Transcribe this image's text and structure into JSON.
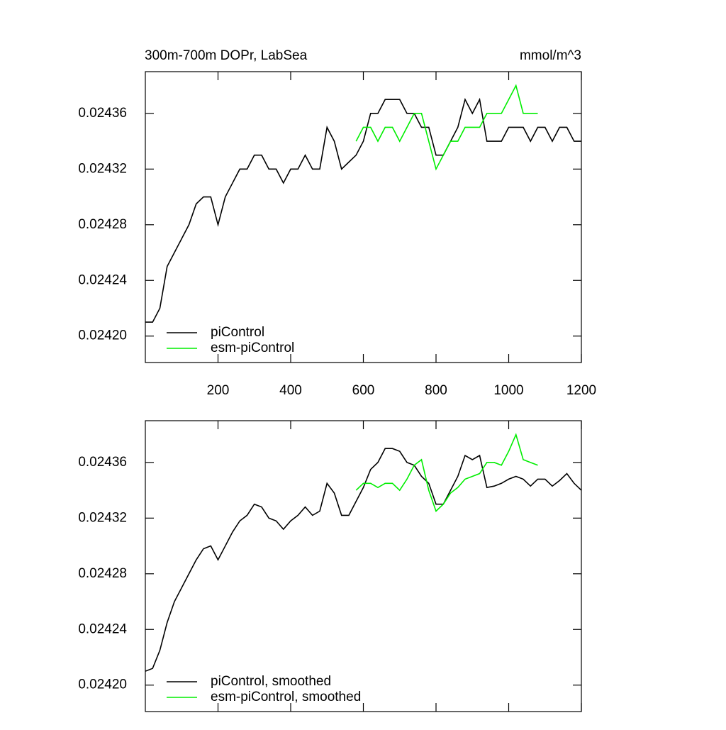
{
  "chart_data": [
    {
      "type": "line",
      "title": "300m-700m DOPr, LabSea",
      "unit_label": "mmol/m^3",
      "xlim": [
        0,
        1200
      ],
      "xticks": [
        200,
        400,
        600,
        800,
        1000,
        1200
      ],
      "show_xtick_labels": true,
      "ylim": [
        0.024181,
        0.02439
      ],
      "yticks": [
        {
          "value": 0.0242,
          "label": "0.02420"
        },
        0.02424,
        0.02428,
        0.02432,
        0.02436
      ],
      "legend": "bottom-left",
      "series": [
        {
          "name": "piControl",
          "color": "#000000",
          "x": [
            0,
            20,
            40,
            60,
            80,
            100,
            120,
            140,
            160,
            180,
            200,
            220,
            240,
            260,
            280,
            300,
            320,
            340,
            360,
            380,
            400,
            420,
            440,
            460,
            480,
            500,
            520,
            540,
            560,
            580,
            600,
            620,
            640,
            660,
            680,
            700,
            720,
            740,
            760,
            780,
            800,
            820,
            840,
            860,
            880,
            900,
            920,
            940,
            960,
            980,
            1000,
            1020,
            1040,
            1060,
            1080,
            1100,
            1120,
            1140,
            1160,
            1180,
            1200
          ],
          "values": [
            0.02421,
            0.02421,
            0.02422,
            0.02425,
            0.02426,
            0.02427,
            0.02428,
            0.024295,
            0.0243,
            0.0243,
            0.02428,
            0.0243,
            0.02431,
            0.02432,
            0.02432,
            0.02433,
            0.02433,
            0.02432,
            0.02432,
            0.02431,
            0.02432,
            0.02432,
            0.02433,
            0.02432,
            0.02432,
            0.02435,
            0.02434,
            0.02432,
            0.024325,
            0.02433,
            0.02434,
            0.02436,
            0.02436,
            0.02437,
            0.02437,
            0.02437,
            0.02436,
            0.02436,
            0.02435,
            0.02435,
            0.02433,
            0.02433,
            0.02434,
            0.02435,
            0.02437,
            0.02436,
            0.02437,
            0.02434,
            0.02434,
            0.02434,
            0.02435,
            0.02435,
            0.02435,
            0.02434,
            0.02435,
            0.02435,
            0.02434,
            0.02435,
            0.02435,
            0.02434,
            0.02434
          ]
        },
        {
          "name": "esm-piControl",
          "color": "#00ee00",
          "x": [
            580,
            600,
            620,
            640,
            660,
            680,
            700,
            720,
            740,
            760,
            780,
            800,
            820,
            840,
            860,
            880,
            900,
            920,
            940,
            960,
            980,
            1000,
            1020,
            1040,
            1060,
            1080
          ],
          "values": [
            0.02434,
            0.02435,
            0.02435,
            0.02434,
            0.02435,
            0.02435,
            0.02434,
            0.02435,
            0.02436,
            0.02436,
            0.02434,
            0.02432,
            0.02433,
            0.02434,
            0.02434,
            0.02435,
            0.02435,
            0.02435,
            0.02436,
            0.02436,
            0.02436,
            0.02437,
            0.02438,
            0.02436,
            0.02436,
            0.02436
          ]
        }
      ]
    },
    {
      "type": "line",
      "xlim": [
        0,
        1200
      ],
      "xticks": [
        200,
        400,
        600,
        800,
        1000,
        1200
      ],
      "show_xtick_labels": false,
      "ylim": [
        0.024181,
        0.02439
      ],
      "yticks": [
        {
          "value": 0.0242,
          "label": "0.02420"
        },
        0.02424,
        0.02428,
        0.02432,
        0.02436
      ],
      "legend": "bottom-left",
      "series": [
        {
          "name": "piControl, smoothed",
          "color": "#000000",
          "x": [
            0,
            20,
            40,
            60,
            80,
            100,
            120,
            140,
            160,
            180,
            200,
            220,
            240,
            260,
            280,
            300,
            320,
            340,
            360,
            380,
            400,
            420,
            440,
            460,
            480,
            500,
            520,
            540,
            560,
            580,
            600,
            620,
            640,
            660,
            680,
            700,
            720,
            740,
            760,
            780,
            800,
            820,
            840,
            860,
            880,
            900,
            920,
            940,
            960,
            980,
            1000,
            1020,
            1040,
            1060,
            1080,
            1100,
            1120,
            1140,
            1160,
            1180,
            1200
          ],
          "values": [
            0.02421,
            0.024212,
            0.024225,
            0.024245,
            0.02426,
            0.02427,
            0.02428,
            0.02429,
            0.024298,
            0.0243,
            0.02429,
            0.0243,
            0.02431,
            0.024318,
            0.024322,
            0.02433,
            0.024328,
            0.02432,
            0.024318,
            0.024312,
            0.024318,
            0.024322,
            0.024328,
            0.024322,
            0.024325,
            0.024345,
            0.024338,
            0.024322,
            0.024322,
            0.024332,
            0.024342,
            0.024355,
            0.02436,
            0.02437,
            0.02437,
            0.024368,
            0.02436,
            0.024358,
            0.02435,
            0.024345,
            0.02433,
            0.02433,
            0.02434,
            0.02435,
            0.024365,
            0.024362,
            0.024365,
            0.024342,
            0.024343,
            0.024345,
            0.024348,
            0.02435,
            0.024348,
            0.024343,
            0.024348,
            0.024348,
            0.024343,
            0.024347,
            0.024352,
            0.024345,
            0.02434
          ]
        },
        {
          "name": "esm-piControl, smoothed",
          "color": "#00ee00",
          "x": [
            580,
            600,
            620,
            640,
            660,
            680,
            700,
            720,
            740,
            760,
            780,
            800,
            820,
            840,
            860,
            880,
            900,
            920,
            940,
            960,
            980,
            1000,
            1020,
            1040,
            1060,
            1080
          ],
          "values": [
            0.02434,
            0.024345,
            0.024345,
            0.024342,
            0.024345,
            0.024345,
            0.02434,
            0.024348,
            0.024358,
            0.024362,
            0.02434,
            0.024325,
            0.02433,
            0.024338,
            0.024342,
            0.024348,
            0.02435,
            0.024352,
            0.02436,
            0.02436,
            0.024358,
            0.024368,
            0.02438,
            0.024362,
            0.02436,
            0.024358
          ]
        }
      ]
    }
  ]
}
